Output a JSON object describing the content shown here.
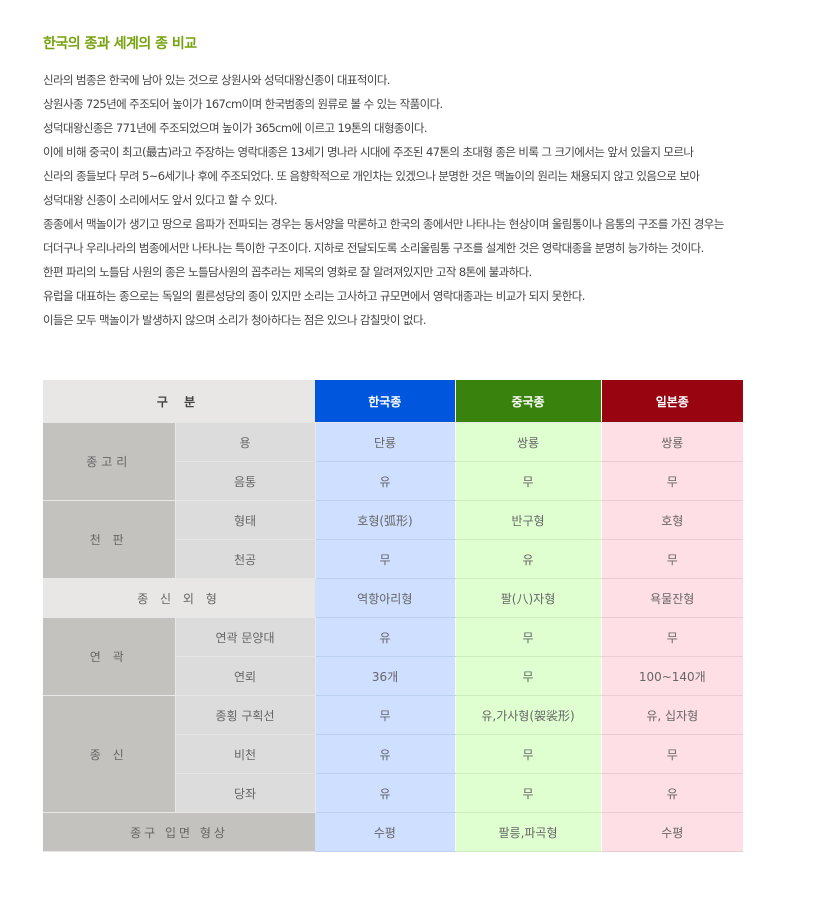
{
  "title": "한국의 종과 세계의 종 비교",
  "paragraph_lines": [
    "신라의 범종은 한국에 남아 있는 것으로 상원사와 성덕대왕신종이 대표적이다.",
    "상원사종 725년에 주조되어 높이가 167cm이며 한국범종의 원류로 볼 수 있는 작품이다.",
    "성덕대왕신종은 771년에 주조되었으며 높이가 365cm에 이르고 19톤의 대형종이다.",
    "이에 비해 중국이 최고(最古)라고 주장하는 영락대종은 13세기 명나라 시대에 주조된 47톤의 초대형 종은 비록 그 크기에서는 앞서 있을지 모르나",
    "신라의 종들보다 무려 5~6세기나 후에 주조되었다. 또 음향학적으로 개인차는 있겠으나 분명한 것은 맥놀이의 원리는 채용되지 않고 있음으로 보아",
    "성덕대왕 신종이 소리에서도 앞서 있다고 할 수 있다.",
    "종종에서 맥놀이가 생기고 땅으로 음파가 전파되는 경우는 동서양을 막론하고 한국의 종에서만 나타나는 현상이며 울림통이나 음통의 구조를 가진 경우는",
    "더더구나 우리나라의 범종에서만 나타나는 특이한 구조이다. 지하로 전달되도록 소리울림통 구조를 설계한 것은 영락대종을 분명히 능가하는 것이다.",
    "한편 파리의 노틀담 사원의 종은 노틀담사원의 꼽추라는 제목의 영화로 잘 알려져있지만 고작 8톤에 불과하다.",
    "유럽을 대표하는 종으로는 독일의 퀼른성당의 종이 있지만 소리는 고사하고 규모면에서 영락대종과는 비교가 되지 못한다.",
    "이들은 모두 맥놀이가 발생하지 않으며 소리가 청아하다는 점은 있으나 감칠맛이 없다."
  ],
  "table": {
    "header": {
      "category": "구 분",
      "korea": "한국종",
      "china": "중국종",
      "japan": "일본종"
    },
    "colors": {
      "korea": "#0056dc",
      "china": "#3a820e",
      "japan": "#980511"
    },
    "rows": [
      {
        "group": "종고리",
        "span": 2,
        "item": "용",
        "korea": "단룡",
        "china": "쌍룡",
        "japan": "쌍룡"
      },
      {
        "item": "음통",
        "korea": "유",
        "china": "무",
        "japan": "무"
      },
      {
        "group": "천 판",
        "span": 2,
        "item": "형태",
        "korea": "호형(弧形)",
        "china": "반구형",
        "japan": "호형"
      },
      {
        "item": "천공",
        "korea": "무",
        "china": "유",
        "japan": "무"
      },
      {
        "full": "종 신 외 형",
        "korea": "역항아리형",
        "china": "팔(八)자형",
        "japan": "욕물잔형"
      },
      {
        "group": "연 곽",
        "span": 2,
        "item": "연곽 문양대",
        "korea": "유",
        "china": "무",
        "japan": "무"
      },
      {
        "item": "연뢰",
        "korea": "36개",
        "china": "무",
        "japan": "100~140개"
      },
      {
        "group": "종 신",
        "span": 3,
        "item": "종횡 구획선",
        "korea": "무",
        "china": "유,가사형(袈裟形)",
        "japan": "유, 십자형"
      },
      {
        "item": "비천",
        "korea": "유",
        "china": "무",
        "japan": "무"
      },
      {
        "item": "당좌",
        "korea": "유",
        "china": "무",
        "japan": "유"
      },
      {
        "full": "종구 입면 형상",
        "dark": true,
        "korea": "수평",
        "china": "팔릉,파곡형",
        "japan": "수평"
      }
    ]
  }
}
